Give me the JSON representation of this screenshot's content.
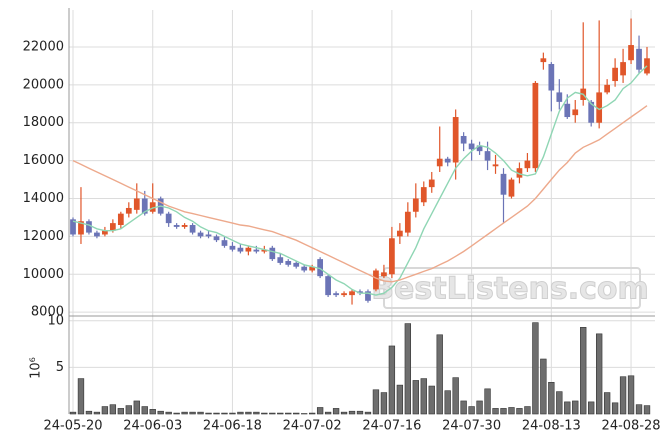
{
  "chart_data": {
    "type": "candlestick",
    "categories": [
      "24-05-20",
      null,
      null,
      null,
      null,
      null,
      null,
      null,
      null,
      null,
      "24-06-03",
      null,
      null,
      null,
      null,
      null,
      null,
      null,
      null,
      null,
      "24-06-18",
      null,
      null,
      null,
      null,
      null,
      null,
      null,
      null,
      null,
      "24-07-02",
      null,
      null,
      null,
      null,
      null,
      null,
      null,
      null,
      null,
      "24-07-16",
      null,
      null,
      null,
      null,
      null,
      null,
      null,
      null,
      null,
      "24-07-30",
      null,
      null,
      null,
      null,
      null,
      null,
      null,
      null,
      null,
      "24-08-13",
      null,
      null,
      null,
      null,
      null,
      null,
      null,
      null,
      null,
      "24-08-28",
      null,
      null
    ],
    "open": [
      12900,
      12100,
      12800,
      12200,
      12100,
      12300,
      12600,
      13200,
      13400,
      14000,
      13300,
      14000,
      13200,
      12600,
      12500,
      12600,
      12200,
      12100,
      12000,
      11800,
      11500,
      11400,
      11200,
      11300,
      11200,
      11400,
      10900,
      10700,
      10600,
      10400,
      10200,
      10800,
      9900,
      9000,
      8900,
      8900,
      9100,
      9100,
      9200,
      9900,
      10000,
      12000,
      12200,
      13300,
      13800,
      14600,
      15700,
      16100,
      15900,
      17300,
      16900,
      16800,
      16500,
      15700,
      15300,
      14100,
      15100,
      15600,
      15600,
      21200,
      21100,
      19600,
      19000,
      18400,
      19200,
      19100,
      18000,
      19600,
      20200,
      20500,
      21300,
      21900,
      20600
    ],
    "high": [
      13000,
      14600,
      12900,
      12300,
      12500,
      12900,
      13300,
      13800,
      14800,
      14400,
      14800,
      14100,
      13300,
      12700,
      12700,
      12700,
      12300,
      12300,
      12100,
      12000,
      11700,
      11600,
      11500,
      11500,
      11500,
      11500,
      11100,
      10800,
      10700,
      10500,
      10500,
      10900,
      10000,
      9100,
      9100,
      9200,
      9200,
      9200,
      10300,
      10500,
      12500,
      12700,
      13800,
      14800,
      14900,
      15400,
      17800,
      16200,
      18700,
      17500,
      17100,
      17000,
      17000,
      16300,
      15600,
      15100,
      15900,
      16400,
      20200,
      21700,
      21200,
      20300,
      19500,
      19200,
      23300,
      19200,
      23400,
      20300,
      21400,
      21900,
      23500,
      22600,
      22000
    ],
    "low": [
      12000,
      11600,
      12100,
      11900,
      12000,
      12200,
      12400,
      13000,
      13200,
      13100,
      13200,
      13100,
      12500,
      12400,
      12400,
      12100,
      11900,
      11900,
      11700,
      11400,
      11200,
      11100,
      11000,
      11100,
      11100,
      10700,
      10500,
      10400,
      10300,
      10100,
      10100,
      9800,
      8800,
      8800,
      8800,
      8400,
      8900,
      8500,
      9100,
      9800,
      9800,
      11600,
      12000,
      13000,
      13600,
      14300,
      15400,
      15700,
      15000,
      16500,
      16000,
      16300,
      15500,
      15300,
      12700,
      14000,
      14800,
      15400,
      15400,
      20800,
      18600,
      18700,
      18200,
      18000,
      18900,
      17800,
      17700,
      19500,
      19900,
      20100,
      21100,
      20600,
      20500
    ],
    "close": [
      12100,
      12800,
      12200,
      12000,
      12300,
      12700,
      13200,
      13500,
      14000,
      13200,
      13800,
      13200,
      12700,
      12500,
      12600,
      12200,
      12000,
      12000,
      11800,
      11500,
      11300,
      11200,
      11400,
      11200,
      11300,
      10800,
      10600,
      10500,
      10400,
      10200,
      10400,
      9900,
      8900,
      8900,
      9000,
      9100,
      9000,
      8600,
      10200,
      10100,
      11900,
      12300,
      13300,
      14000,
      14600,
      15000,
      16100,
      15900,
      18300,
      16900,
      16600,
      16500,
      16000,
      15800,
      14200,
      15000,
      15600,
      16000,
      20100,
      21400,
      19700,
      19100,
      18300,
      18700,
      19800,
      18000,
      19600,
      20000,
      20900,
      21200,
      22100,
      20800,
      21400
    ],
    "up_color": "#e0562a",
    "down_color": "#6b74b6",
    "moving_averages": [
      {
        "color": "#8fd6b4",
        "values": [
          12800,
          12700,
          12600,
          12400,
          12300,
          12300,
          12400,
          12700,
          13000,
          13300,
          13500,
          13600,
          13500,
          13300,
          13000,
          12800,
          12500,
          12300,
          12200,
          12000,
          11800,
          11600,
          11500,
          11400,
          11300,
          11200,
          11100,
          10900,
          10700,
          10500,
          10400,
          10300,
          10000,
          9700,
          9500,
          9200,
          9000,
          9000,
          8900,
          9000,
          9300,
          9800,
          10600,
          11400,
          12400,
          13200,
          14000,
          14800,
          15600,
          16100,
          16500,
          16800,
          16700,
          16400,
          16000,
          15500,
          15300,
          15200,
          15300,
          16200,
          17400,
          18600,
          19300,
          19600,
          19500,
          19000,
          18700,
          18900,
          19200,
          19800,
          20100,
          20600,
          21000
        ]
      },
      {
        "color": "#eda98c",
        "values": [
          16000,
          15800,
          15600,
          15400,
          15200,
          15000,
          14800,
          14600,
          14400,
          14200,
          14000,
          13800,
          13600,
          13450,
          13300,
          13200,
          13100,
          13000,
          12900,
          12800,
          12700,
          12600,
          12550,
          12450,
          12350,
          12250,
          12100,
          11950,
          11800,
          11600,
          11400,
          11200,
          11000,
          10800,
          10600,
          10400,
          10200,
          10000,
          9800,
          9650,
          9600,
          9700,
          9850,
          10000,
          10150,
          10300,
          10500,
          10700,
          10950,
          11200,
          11500,
          11800,
          12100,
          12400,
          12700,
          13000,
          13300,
          13600,
          14000,
          14500,
          15000,
          15500,
          15900,
          16400,
          16700,
          16900,
          17100,
          17400,
          17700,
          18000,
          18300,
          18600,
          18900
        ]
      }
    ],
    "ylim": [
      7850,
      23950
    ],
    "yticks": [
      8000,
      10000,
      12000,
      14000,
      16000,
      18000,
      20000,
      22000
    ],
    "grid": true,
    "watermark": "BestListens.com",
    "volume": {
      "color": "#6e6e6e",
      "values": [
        0.2,
        3.8,
        0.3,
        0.2,
        0.8,
        1.0,
        0.6,
        0.9,
        1.4,
        0.8,
        0.5,
        0.3,
        0.2,
        0.1,
        0.2,
        0.2,
        0.2,
        0.1,
        0.1,
        0.1,
        0.1,
        0.2,
        0.2,
        0.2,
        0.1,
        0.1,
        0.1,
        0.1,
        0.1,
        0.05,
        0.1,
        0.7,
        0.2,
        0.6,
        0.2,
        0.3,
        0.3,
        0.2,
        2.6,
        2.3,
        7.3,
        3.1,
        9.7,
        3.6,
        3.8,
        3.0,
        8.5,
        2.5,
        3.9,
        1.4,
        0.8,
        1.4,
        2.7,
        0.6,
        0.6,
        0.7,
        0.6,
        0.8,
        9.8,
        5.9,
        3.4,
        2.4,
        1.3,
        1.4,
        9.3,
        1.3,
        8.6,
        2.3,
        1.2,
        4.0,
        4.1,
        1.0,
        0.9
      ],
      "ylim": [
        0,
        10.3
      ],
      "yticks": [
        5,
        10
      ],
      "axis_label": "10⁶"
    }
  }
}
